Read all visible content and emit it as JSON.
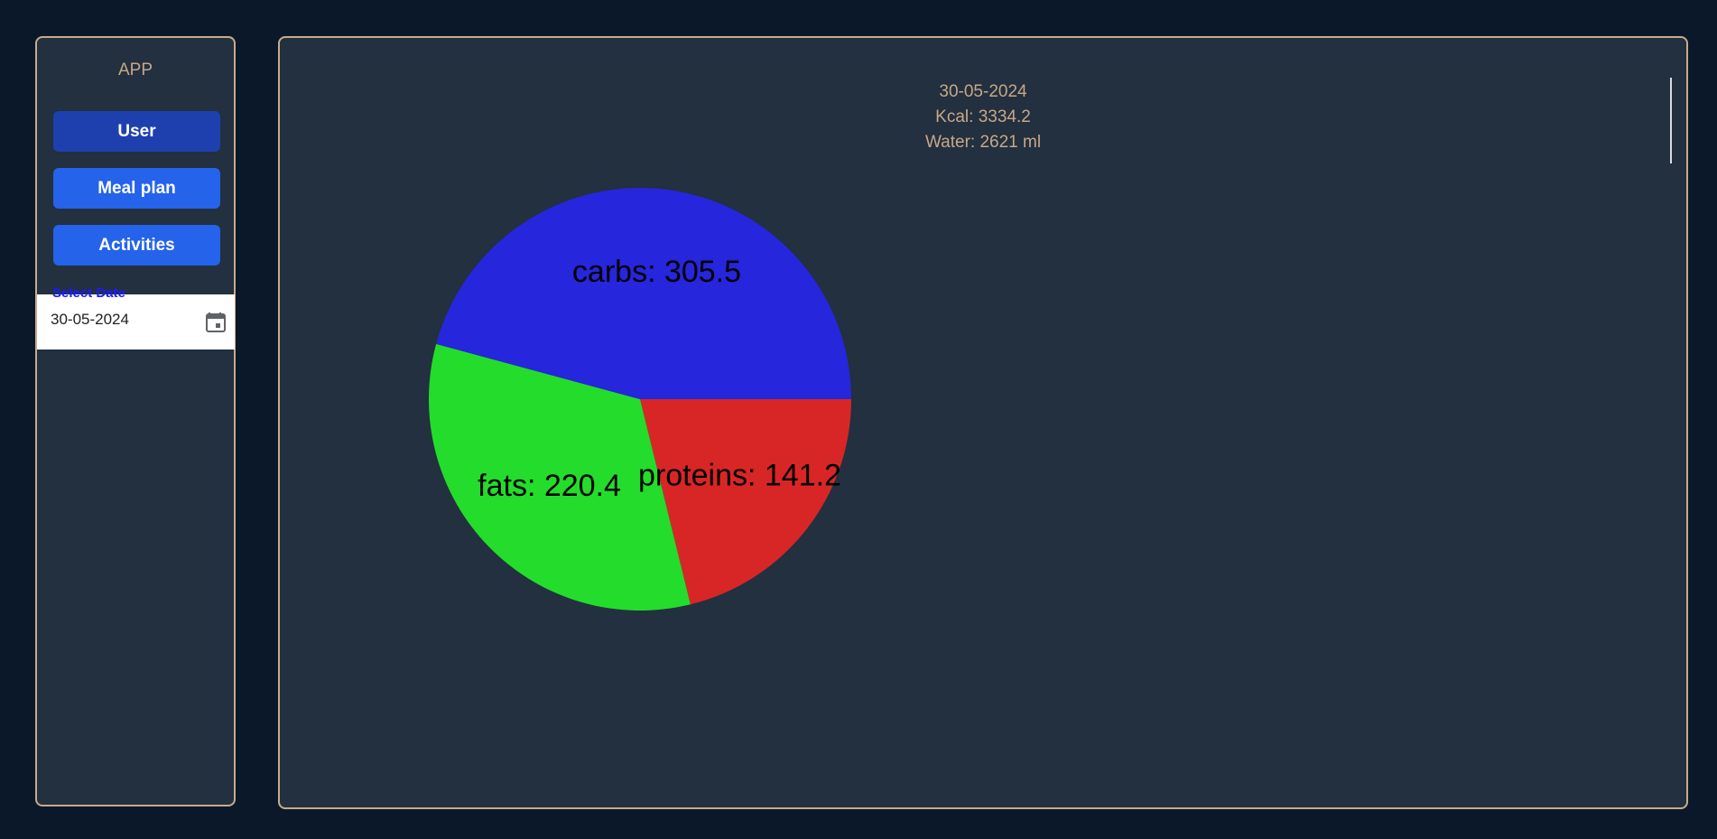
{
  "sidebar": {
    "app_title": "APP",
    "buttons": [
      {
        "label": "User",
        "active": true
      },
      {
        "label": "Meal plan",
        "active": false
      },
      {
        "label": "Activities",
        "active": false
      }
    ],
    "date_picker": {
      "label": "Select Date",
      "value": "30-05-2024",
      "icon": "calendar-icon"
    }
  },
  "summary": {
    "date": "30-05-2024",
    "kcal": "Kcal: 3334.2",
    "water": "Water: 2621 ml"
  },
  "chart_data": {
    "type": "pie",
    "categories": [
      "carbs",
      "fats",
      "proteins"
    ],
    "values": [
      305.5,
      220.4,
      141.2
    ],
    "labels": [
      "carbs: 305.5",
      "fats: 220.4",
      "proteins: 141.2"
    ],
    "colors": [
      "#2626dc",
      "#24dc2b",
      "#d82626"
    ],
    "title": ""
  },
  "colors": {
    "background": "#0b1829",
    "panel": "#22303f",
    "border": "#c7ab8b",
    "accent_text": "#c7a889",
    "button_active": "#1e40af",
    "button": "#2563eb"
  }
}
